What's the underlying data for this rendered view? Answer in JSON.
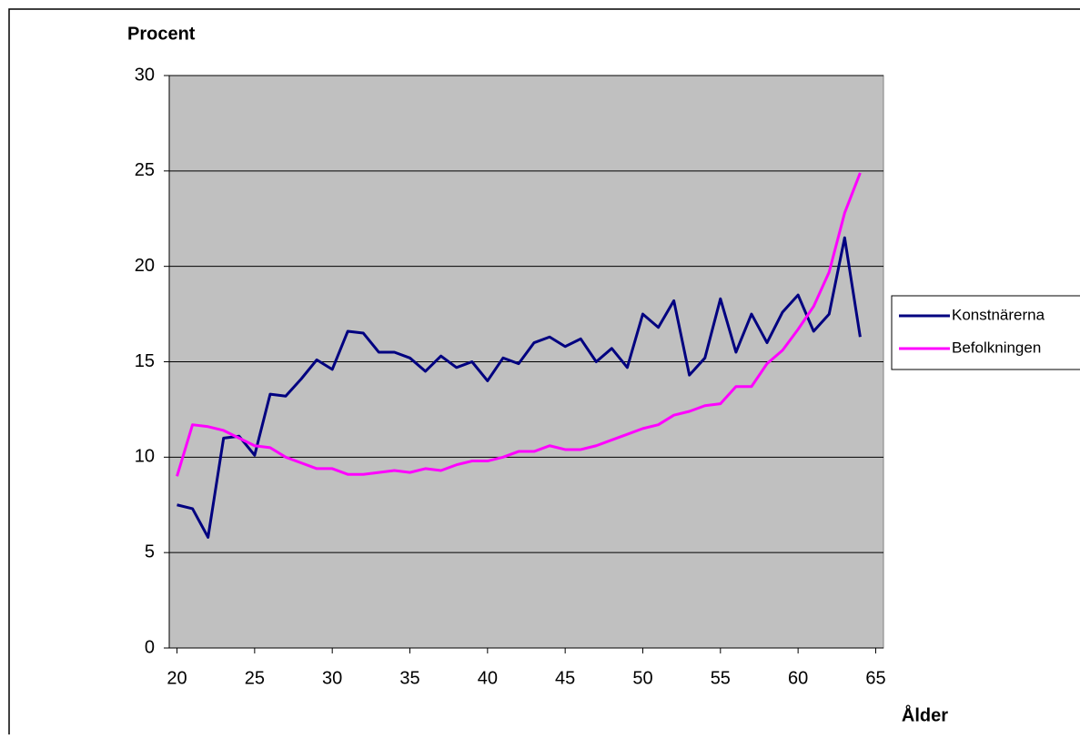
{
  "chart_data": {
    "type": "line",
    "y_label": "Procent",
    "x_label": "Ålder",
    "x": [
      20,
      21,
      22,
      23,
      24,
      25,
      26,
      27,
      28,
      29,
      30,
      31,
      32,
      33,
      34,
      35,
      36,
      37,
      38,
      39,
      40,
      41,
      42,
      43,
      44,
      45,
      46,
      47,
      48,
      49,
      50,
      51,
      52,
      53,
      54,
      55,
      56,
      57,
      58,
      59,
      60,
      61,
      62,
      63,
      64
    ],
    "series": [
      {
        "name": "Konstnärerna",
        "color": "#000080",
        "values": [
          7.5,
          7.3,
          5.8,
          11.0,
          11.1,
          10.1,
          13.3,
          13.2,
          14.1,
          15.1,
          14.6,
          16.6,
          16.5,
          15.5,
          15.5,
          15.2,
          14.5,
          15.3,
          14.7,
          15.0,
          14.0,
          15.2,
          14.9,
          16.0,
          16.3,
          15.8,
          16.2,
          15.0,
          15.7,
          14.7,
          17.5,
          16.8,
          18.2,
          14.3,
          15.2,
          18.3,
          15.5,
          17.5,
          16.0,
          17.6,
          18.5,
          16.6,
          17.5,
          21.5,
          16.3
        ]
      },
      {
        "name": "Befolkningen",
        "color": "#ff00ff",
        "values": [
          9.0,
          11.7,
          11.6,
          11.4,
          11.0,
          10.6,
          10.5,
          10.0,
          9.7,
          9.4,
          9.4,
          9.1,
          9.1,
          9.2,
          9.3,
          9.2,
          9.4,
          9.3,
          9.6,
          9.8,
          9.8,
          10.0,
          10.3,
          10.3,
          10.6,
          10.4,
          10.4,
          10.6,
          10.9,
          11.2,
          11.5,
          11.7,
          12.2,
          12.4,
          12.7,
          12.8,
          13.7,
          13.7,
          14.9,
          15.6,
          16.7,
          17.9,
          19.7,
          22.8,
          24.9
        ]
      }
    ],
    "xlim": [
      19.5,
      65.5
    ],
    "xticks": [
      20,
      25,
      30,
      35,
      40,
      45,
      50,
      55,
      60,
      65
    ],
    "ylim": [
      0,
      30
    ],
    "yticks": [
      0,
      5,
      10,
      15,
      20,
      25,
      30
    ],
    "grid": true,
    "background": "#c0c0c0",
    "legend": "right"
  }
}
